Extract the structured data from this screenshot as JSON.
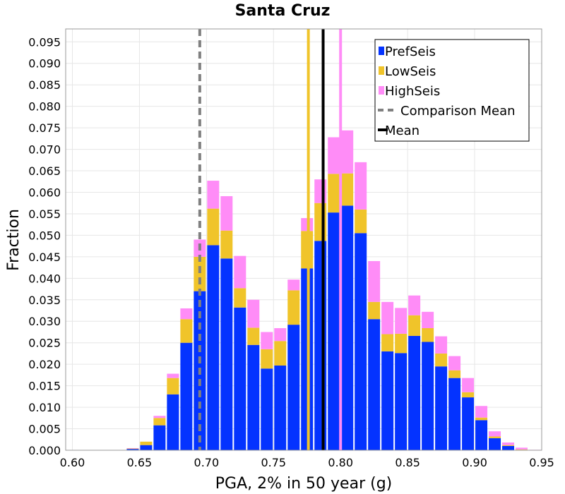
{
  "chart_data": {
    "type": "bar",
    "stacked": true,
    "title": "Santa Cruz",
    "xlabel": "PGA, 2% in 50 year (g)",
    "ylabel": "Fraction",
    "xlim": [
      0.595,
      0.95
    ],
    "ylim": [
      0.0,
      0.098
    ],
    "xticks": [
      "0.60",
      "0.65",
      "0.70",
      "0.75",
      "0.80",
      "0.85",
      "0.90",
      "0.95"
    ],
    "yticks": [
      "0.000",
      "0.005",
      "0.010",
      "0.015",
      "0.020",
      "0.025",
      "0.030",
      "0.035",
      "0.040",
      "0.045",
      "0.050",
      "0.055",
      "0.060",
      "0.065",
      "0.070",
      "0.075",
      "0.080",
      "0.085",
      "0.090",
      "0.095"
    ],
    "bin_width": 0.01,
    "bin_centers": [
      0.645,
      0.655,
      0.665,
      0.675,
      0.685,
      0.695,
      0.705,
      0.715,
      0.725,
      0.735,
      0.745,
      0.755,
      0.765,
      0.775,
      0.785,
      0.795,
      0.805,
      0.815,
      0.825,
      0.835,
      0.845,
      0.855,
      0.865,
      0.875,
      0.885,
      0.895,
      0.905,
      0.915,
      0.925,
      0.935,
      0.945
    ],
    "series": [
      {
        "name": "PrefSeis",
        "color": "#0433ff",
        "values": [
          0.0003,
          0.0012,
          0.0058,
          0.013,
          0.025,
          0.037,
          0.0477,
          0.0446,
          0.0332,
          0.0245,
          0.019,
          0.0197,
          0.0292,
          0.0423,
          0.0487,
          0.0553,
          0.0569,
          0.0505,
          0.0305,
          0.023,
          0.0226,
          0.0266,
          0.0252,
          0.0195,
          0.0168,
          0.0123,
          0.007,
          0.0028,
          0.001,
          0.0001,
          0.0
        ]
      },
      {
        "name": "LowSeis",
        "color": "#f0c42a",
        "values": [
          0.0001,
          0.0008,
          0.0017,
          0.0038,
          0.0055,
          0.008,
          0.0085,
          0.0065,
          0.0045,
          0.004,
          0.0045,
          0.0057,
          0.008,
          0.0087,
          0.0088,
          0.009,
          0.0075,
          0.0055,
          0.004,
          0.004,
          0.0045,
          0.0048,
          0.0032,
          0.003,
          0.0018,
          0.0012,
          0.0006,
          0.0004,
          0.0002,
          0.0001,
          0.0
        ]
      },
      {
        "name": "HighSeis",
        "color": "#ff8cf7",
        "values": [
          0.0001,
          0.0,
          0.0005,
          0.001,
          0.0025,
          0.004,
          0.0065,
          0.008,
          0.0075,
          0.0065,
          0.004,
          0.003,
          0.0025,
          0.003,
          0.0055,
          0.0085,
          0.01,
          0.011,
          0.0095,
          0.0075,
          0.006,
          0.0046,
          0.0038,
          0.004,
          0.0033,
          0.0033,
          0.0027,
          0.0012,
          0.0006,
          0.0004,
          0.0001
        ]
      }
    ],
    "vlines": [
      {
        "name": "LowSeis mean",
        "x": 0.776,
        "color": "#f0c42a",
        "style": "solid"
      },
      {
        "name": "HighSeis mean",
        "x": 0.8,
        "color": "#ff8cf7",
        "style": "solid"
      },
      {
        "name": "Mean",
        "x": 0.787,
        "color": "#000000",
        "style": "solid"
      },
      {
        "name": "Comparison Mean",
        "x": 0.695,
        "color": "#808080",
        "style": "dashed"
      }
    ],
    "legend": {
      "position": "top-right",
      "entries": [
        {
          "label": "PrefSeis",
          "kind": "patch",
          "color": "#0433ff"
        },
        {
          "label": "LowSeis",
          "kind": "patch",
          "color": "#f0c42a"
        },
        {
          "label": "HighSeis",
          "kind": "patch",
          "color": "#ff8cf7"
        },
        {
          "label": "Comparison Mean",
          "kind": "dashed-line",
          "color": "#808080"
        },
        {
          "label": "Mean",
          "kind": "line",
          "color": "#000000"
        }
      ]
    },
    "grid": true
  }
}
